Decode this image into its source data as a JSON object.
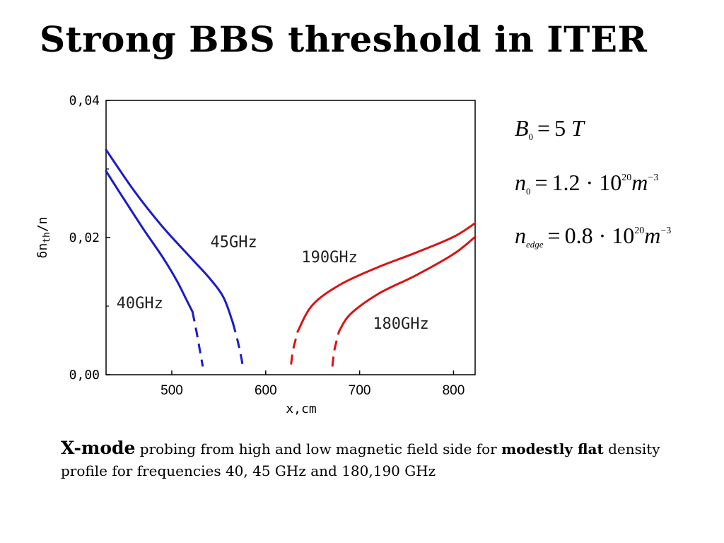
{
  "title": "Strong BBS threshold in ITER",
  "chart_data": {
    "type": "line",
    "xlabel": "x,cm",
    "ylabel_main": "δn",
    "ylabel_sub": "th",
    "ylabel_tail": "/n",
    "xlim": [
      430,
      823
    ],
    "ylim": [
      0,
      0.04
    ],
    "xticks": [
      500,
      600,
      700,
      800
    ],
    "xtick_labels": [
      "500",
      "600",
      "700",
      "800"
    ],
    "yticks": [
      0.0,
      0.02,
      0.04
    ],
    "ytick_labels": [
      "0,00",
      "0,02",
      "0,04"
    ],
    "grid": false,
    "series": [
      {
        "name": "40GHz",
        "color": "#1a1acc",
        "x": [
          430,
          450,
          470,
          490,
          505,
          515,
          522
        ],
        "y": [
          0.0297,
          0.0254,
          0.0212,
          0.0172,
          0.0138,
          0.0111,
          0.0092
        ],
        "dashed_x": [
          522,
          526,
          530,
          533
        ],
        "dashed_y": [
          0.0092,
          0.0065,
          0.0035,
          0.0012
        ]
      },
      {
        "name": "45GHz",
        "color": "#1a1acc",
        "x": [
          430,
          460,
          490,
          520,
          540,
          555,
          565
        ],
        "y": [
          0.0328,
          0.0268,
          0.0216,
          0.0171,
          0.0141,
          0.0113,
          0.0076
        ],
        "dashed_x": [
          565,
          570,
          574,
          576
        ],
        "dashed_y": [
          0.0076,
          0.005,
          0.0025,
          0.0008
        ]
      },
      {
        "name": "190GHz",
        "color": "#dd1111",
        "x": [
          634,
          650,
          680,
          720,
          760,
          800,
          823
        ],
        "y": [
          0.0063,
          0.0102,
          0.0132,
          0.0157,
          0.0178,
          0.0201,
          0.0221
        ],
        "dashed_x": [
          627,
          629,
          632,
          634
        ],
        "dashed_y": [
          0.0015,
          0.0035,
          0.0052,
          0.0063
        ]
      },
      {
        "name": "180GHz",
        "color": "#dd1111",
        "x": [
          678,
          690,
          720,
          760,
          800,
          823
        ],
        "y": [
          0.0063,
          0.0088,
          0.0118,
          0.0145,
          0.0176,
          0.0201
        ],
        "dashed_x": [
          671,
          673,
          676,
          678
        ],
        "dashed_y": [
          0.0012,
          0.0035,
          0.0052,
          0.0063
        ]
      }
    ],
    "annotations": [
      {
        "text": "45GHz",
        "x": 566,
        "y": 0.0186
      },
      {
        "text": "190GHz",
        "x": 668,
        "y": 0.0164
      },
      {
        "text": "40GHz",
        "x": 466,
        "y": 0.0097
      },
      {
        "text": "180GHz",
        "x": 744,
        "y": 0.0067
      }
    ]
  },
  "params": {
    "b0": {
      "sym": "B",
      "sub": "0",
      "op": "=",
      "val": "5",
      "unit": "T"
    },
    "n0": {
      "sym": "n",
      "sub": "0",
      "op": "=",
      "val": "1.2 · 10",
      "exp": "20",
      "unit": "m",
      "unit_exp": "−3"
    },
    "nedge": {
      "sym": "n",
      "sub": "edge",
      "op": "=",
      "val": "0.8 · 10",
      "exp": "20",
      "unit": "m",
      "unit_exp": "−3"
    }
  },
  "caption": {
    "lead": "X-mode",
    "part1": " probing from high and low magnetic field side for ",
    "bold": "modestly flat",
    "part2": " density profile for frequencies 40, 45 GHz and 180,190 GHz"
  }
}
